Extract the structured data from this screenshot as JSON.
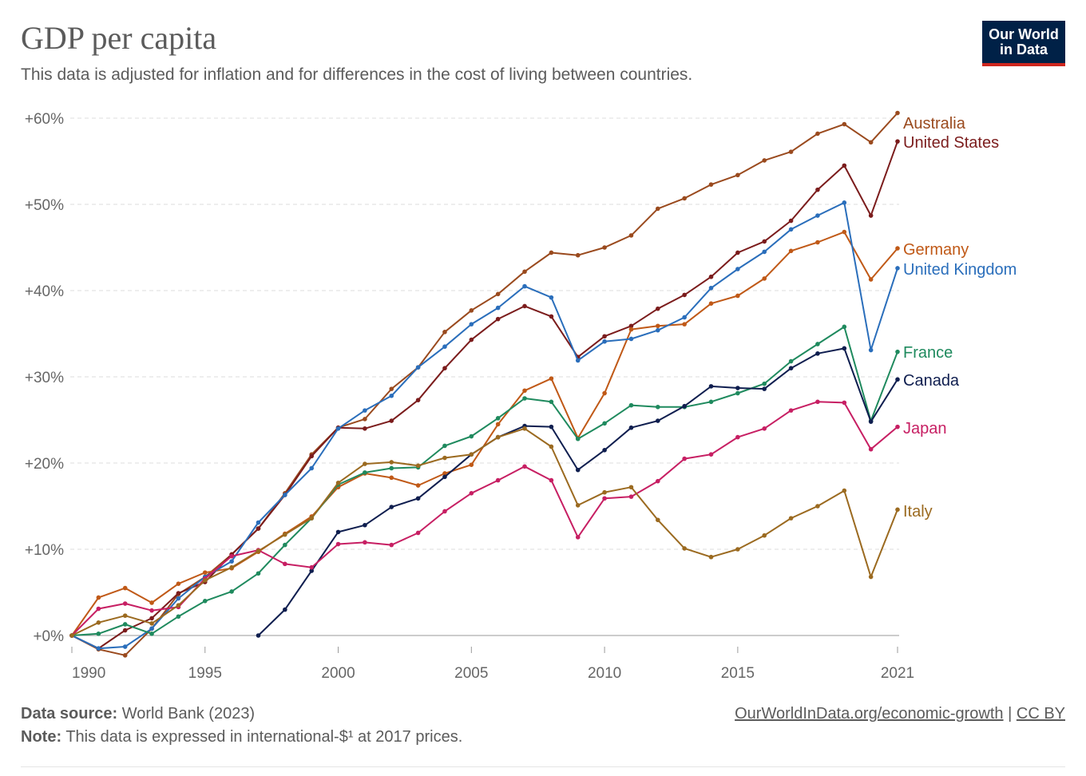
{
  "header": {
    "title": "GDP per capita",
    "subtitle": "This data is adjusted for inflation and for differences in the cost of living between countries.",
    "logo_line1": "Our World",
    "logo_line2": "in Data"
  },
  "footer": {
    "source_label": "Data source:",
    "source_value": "World Bank (2023)",
    "note_label": "Note:",
    "note_value": "This data is expressed in international-$¹ at 2017 prices.",
    "link": "OurWorldInData.org/economic-growth",
    "separator": "|",
    "license": "CC BY"
  },
  "colors": {
    "Australia": "#9a4a1e",
    "United States": "#7b1c1c",
    "Germany": "#c05917",
    "United Kingdom": "#2a6ebb",
    "France": "#1f8a5e",
    "Canada": "#0f1e4f",
    "Japan": "#c71f63",
    "Italy": "#9b6a20"
  },
  "chart_data": {
    "type": "line",
    "title": "GDP per capita",
    "x_tick_labels": [
      "1990",
      "1995",
      "2000",
      "2005",
      "2010",
      "2015",
      "2021"
    ],
    "x_ticks": [
      1990,
      1995,
      2000,
      2005,
      2010,
      2015,
      2021
    ],
    "y_tick_labels": [
      "+0%",
      "+10%",
      "+20%",
      "+30%",
      "+40%",
      "+50%",
      "+60%"
    ],
    "y_ticks": [
      0,
      10,
      20,
      30,
      40,
      50,
      60
    ],
    "xlim": [
      1990,
      2021
    ],
    "ylim": [
      -3,
      62
    ],
    "grid": "horizontal-dashed",
    "legend": "right, inline labels",
    "series": [
      {
        "name": "Australia",
        "x": [
          1990,
          1991,
          1992,
          1993,
          1994,
          1995,
          1996,
          1997,
          1998,
          1999,
          2000,
          2001,
          2002,
          2003,
          2004,
          2005,
          2006,
          2007,
          2008,
          2009,
          2010,
          2011,
          2012,
          2013,
          2014,
          2015,
          2016,
          2017,
          2018,
          2019,
          2020,
          2021
        ],
        "y": [
          0,
          -1.6,
          -2.3,
          0.8,
          4.8,
          6.8,
          9.4,
          12.4,
          16.5,
          21,
          24.1,
          25.1,
          28.6,
          31.1,
          35.2,
          37.7,
          39.6,
          42.2,
          44.4,
          44.1,
          45,
          46.4,
          49.5,
          50.7,
          52.3,
          53.4,
          55.1,
          56.1,
          58.2,
          59.3,
          57.2,
          60.6
        ]
      },
      {
        "name": "United States",
        "x": [
          1990,
          1991,
          1992,
          1993,
          1994,
          1995,
          1996,
          1997,
          1998,
          1999,
          2000,
          2001,
          2002,
          2003,
          2004,
          2005,
          2006,
          2007,
          2008,
          2009,
          2010,
          2011,
          2012,
          2013,
          2014,
          2015,
          2016,
          2017,
          2018,
          2019,
          2020,
          2021
        ],
        "y": [
          0,
          -1.5,
          0.6,
          2,
          4.9,
          6.2,
          9.4,
          12.4,
          16.3,
          20.8,
          24.1,
          24,
          24.9,
          27.3,
          31,
          34.3,
          36.7,
          38.2,
          37,
          32.3,
          34.7,
          35.9,
          37.9,
          39.5,
          41.6,
          44.4,
          45.7,
          48.1,
          51.7,
          54.5,
          48.7,
          57.3
        ]
      },
      {
        "name": "Germany",
        "x": [
          1990,
          1991,
          1992,
          1993,
          1994,
          1995,
          1996,
          1997,
          1998,
          1999,
          2000,
          2001,
          2002,
          2003,
          2004,
          2005,
          2006,
          2007,
          2008,
          2009,
          2010,
          2011,
          2012,
          2013,
          2014,
          2015,
          2016,
          2017,
          2018,
          2019,
          2020,
          2021
        ],
        "y": [
          0,
          4.4,
          5.5,
          3.8,
          6,
          7.3,
          7.8,
          9.7,
          11.8,
          13.8,
          17.2,
          18.8,
          18.3,
          17.4,
          18.8,
          19.8,
          24.5,
          28.4,
          29.8,
          22.9,
          28.1,
          35.5,
          35.9,
          36.1,
          38.5,
          39.4,
          41.4,
          44.6,
          45.6,
          46.8,
          41.3,
          44.9
        ]
      },
      {
        "name": "United Kingdom",
        "x": [
          1990,
          1991,
          1992,
          1993,
          1994,
          1995,
          1996,
          1997,
          1998,
          1999,
          2000,
          2001,
          2002,
          2003,
          2004,
          2005,
          2006,
          2007,
          2008,
          2009,
          2010,
          2011,
          2012,
          2013,
          2014,
          2015,
          2016,
          2017,
          2018,
          2019,
          2020,
          2021
        ],
        "y": [
          0,
          -1.5,
          -1.3,
          0.8,
          4.3,
          6.8,
          8.6,
          13.1,
          16.3,
          19.4,
          24,
          26.1,
          27.8,
          31.1,
          33.5,
          36.1,
          38,
          40.5,
          39.2,
          31.9,
          34.1,
          34.4,
          35.4,
          36.9,
          40.3,
          42.5,
          44.5,
          47.1,
          48.7,
          50.2,
          33.1,
          42.6
        ]
      },
      {
        "name": "France",
        "x": [
          1990,
          1991,
          1992,
          1993,
          1994,
          1995,
          1996,
          1997,
          1998,
          1999,
          2000,
          2001,
          2002,
          2003,
          2004,
          2005,
          2006,
          2007,
          2008,
          2009,
          2010,
          2011,
          2012,
          2013,
          2014,
          2015,
          2016,
          2017,
          2018,
          2019,
          2020,
          2021
        ],
        "y": [
          0,
          0.2,
          1.3,
          0.2,
          2.2,
          4,
          5.1,
          7.2,
          10.5,
          13.6,
          17.5,
          18.9,
          19.4,
          19.5,
          22,
          23.1,
          25.2,
          27.5,
          27.1,
          22.8,
          24.6,
          26.7,
          26.5,
          26.5,
          27.1,
          28.1,
          29.2,
          31.8,
          33.8,
          35.8,
          24.9,
          32.9
        ]
      },
      {
        "name": "Canada",
        "x": [
          1997,
          1998,
          1999,
          2000,
          2001,
          2002,
          2003,
          2004,
          2005,
          2006,
          2007,
          2008,
          2009,
          2010,
          2011,
          2012,
          2013,
          2014,
          2015,
          2016,
          2017,
          2018,
          2019,
          2020,
          2021
        ],
        "y": [
          0,
          3,
          7.5,
          12,
          12.8,
          14.9,
          15.9,
          18.4,
          21,
          23,
          24.3,
          24.2,
          19.2,
          21.5,
          24.1,
          24.9,
          26.6,
          28.9,
          28.7,
          28.6,
          31,
          32.7,
          33.3,
          24.8,
          29.7
        ]
      },
      {
        "name": "Japan",
        "x": [
          1990,
          1991,
          1992,
          1993,
          1994,
          1995,
          1996,
          1997,
          1998,
          1999,
          2000,
          2001,
          2002,
          2003,
          2004,
          2005,
          2006,
          2007,
          2008,
          2009,
          2010,
          2011,
          2012,
          2013,
          2014,
          2015,
          2016,
          2017,
          2018,
          2019,
          2020,
          2021
        ],
        "y": [
          0,
          3.1,
          3.7,
          2.9,
          3.3,
          6.6,
          9.2,
          9.9,
          8.3,
          7.9,
          10.6,
          10.8,
          10.5,
          11.9,
          14.4,
          16.5,
          18,
          19.6,
          18,
          11.4,
          15.9,
          16.1,
          17.9,
          20.5,
          21,
          23,
          24,
          26.1,
          27.1,
          27,
          21.6,
          24.2
        ]
      },
      {
        "name": "Italy",
        "x": [
          1990,
          1991,
          1992,
          1993,
          1994,
          1995,
          1996,
          1997,
          1998,
          1999,
          2000,
          2001,
          2002,
          2003,
          2004,
          2005,
          2006,
          2007,
          2008,
          2009,
          2010,
          2011,
          2012,
          2013,
          2014,
          2015,
          2016,
          2017,
          2018,
          2019,
          2020,
          2021
        ],
        "y": [
          0,
          1.5,
          2.3,
          1.4,
          3.5,
          6.4,
          7.9,
          9.8,
          11.7,
          13.6,
          17.7,
          19.9,
          20.1,
          19.7,
          20.6,
          21,
          23,
          24,
          21.9,
          15.1,
          16.6,
          17.2,
          13.4,
          10.1,
          9.1,
          10,
          11.6,
          13.6,
          15,
          16.8,
          6.8,
          14.6
        ]
      }
    ],
    "end_labels": [
      "Australia",
      "United States",
      "Germany",
      "United Kingdom",
      "France",
      "Canada",
      "Japan",
      "Italy"
    ]
  }
}
